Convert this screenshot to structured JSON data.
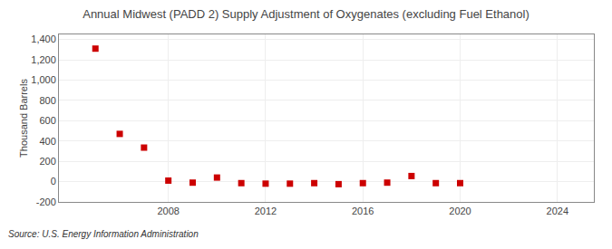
{
  "chart_data": {
    "type": "scatter",
    "title": "Annual Midwest (PADD 2) Supply Adjustment of Oxygenates (excluding Fuel Ethanol)",
    "ylabel": "Thousand Barrels",
    "source": "Source: U.S. Energy Information Administration",
    "x": [
      2005,
      2006,
      2007,
      2008,
      2009,
      2010,
      2011,
      2012,
      2013,
      2014,
      2015,
      2016,
      2017,
      2018,
      2019,
      2020,
      2021,
      2022,
      2023,
      2024
    ],
    "values": [
      1310,
      470,
      335,
      10,
      -10,
      40,
      -15,
      -20,
      -20,
      -15,
      -25,
      -15,
      -10,
      55,
      -15,
      -15,
      null,
      null,
      null,
      null
    ],
    "color": "#cc0000",
    "marker": "square",
    "xlim": [
      2003.5,
      2025.5
    ],
    "xticks": [
      2008,
      2012,
      2016,
      2020,
      2024
    ],
    "ylim": [
      -200,
      1450
    ],
    "yticks": [
      -200,
      0,
      200,
      400,
      600,
      800,
      {
        "value": 1000,
        "label": "1,000"
      },
      {
        "value": 1200,
        "label": "1,200"
      },
      {
        "value": 1400,
        "label": "1,400"
      }
    ],
    "grid": true
  }
}
